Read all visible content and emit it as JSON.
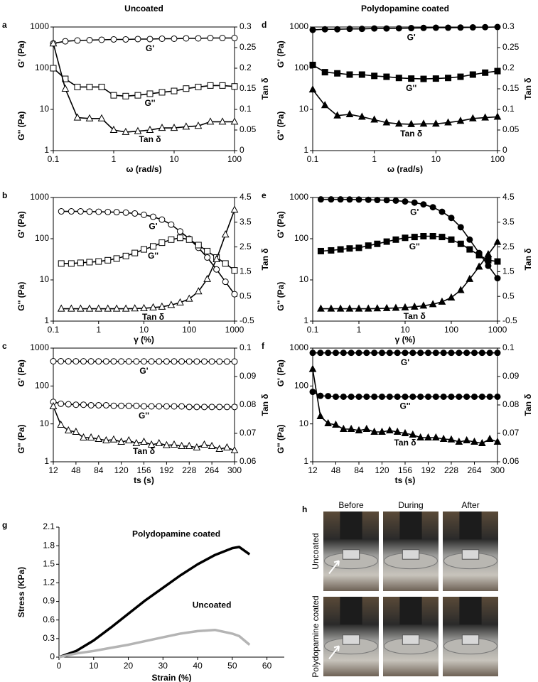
{
  "chart_data": [
    {
      "type": "line",
      "panel": "a",
      "title": "Uncoated",
      "logx": true,
      "logy": true,
      "xlabel": "ω (rad/s)",
      "ylabels": [
        "G' (Pa)",
        "G'' (Pa)"
      ],
      "y2label": "Tan δ",
      "x": [
        0.1,
        0.158,
        0.251,
        0.398,
        0.631,
        1,
        1.58,
        2.51,
        3.98,
        6.31,
        10,
        15.8,
        25.1,
        39.8,
        63.1,
        100
      ],
      "xlim": [
        0.1,
        100
      ],
      "xticks": [
        0.1,
        1,
        10,
        100
      ],
      "ylim": [
        1,
        1000
      ],
      "yticks": [
        1,
        10,
        100,
        1000
      ],
      "y2lim": [
        0,
        0.3
      ],
      "y2ticks": [
        0,
        0.05,
        0.1,
        0.15,
        0.2,
        0.25,
        0.3
      ],
      "series": [
        {
          "name": "G'",
          "color": "#000000",
          "marker": "circle",
          "filled": false,
          "values": [
            400,
            450,
            470,
            480,
            490,
            500,
            500,
            510,
            510,
            520,
            520,
            530,
            530,
            540,
            540,
            540
          ]
        },
        {
          "name": "G''",
          "color": "#000000",
          "marker": "square",
          "filled": false,
          "values": [
            100,
            55,
            35,
            35,
            35,
            22,
            21,
            22,
            24,
            26,
            28,
            32,
            35,
            38,
            38,
            36
          ]
        },
        {
          "name": "Tan δ",
          "color": "#000000",
          "marker": "triangle",
          "filled": false,
          "axis": "y2",
          "values": [
            0.26,
            0.15,
            0.08,
            0.078,
            0.078,
            0.05,
            0.045,
            0.047,
            0.05,
            0.055,
            0.055,
            0.058,
            0.06,
            0.07,
            0.07,
            0.07
          ]
        }
      ]
    },
    {
      "type": "line",
      "panel": "b",
      "logx": true,
      "logy": true,
      "xlabel": "γ (%)",
      "ylabels": [
        "G' (Pa)",
        "G'' (Pa)"
      ],
      "y2label": "Tan δ",
      "x": [
        0.15,
        0.25,
        0.4,
        0.63,
        1,
        1.6,
        2.5,
        4,
        6.3,
        10,
        16,
        25,
        40,
        63,
        100,
        160,
        250,
        400,
        630,
        1000
      ],
      "xlim": [
        0.1,
        1000
      ],
      "xticks": [
        0.1,
        1,
        10,
        100,
        1000
      ],
      "ylim": [
        1,
        1000
      ],
      "yticks": [
        1,
        10,
        100,
        1000
      ],
      "y2lim": [
        -0.5,
        4.5
      ],
      "y2ticks": [
        -0.5,
        0.5,
        1.5,
        2.5,
        3.5,
        4.5
      ],
      "series": [
        {
          "name": "G'",
          "color": "#000000",
          "marker": "circle",
          "filled": false,
          "values": [
            460,
            460,
            460,
            455,
            450,
            445,
            440,
            430,
            410,
            380,
            340,
            290,
            220,
            150,
            100,
            60,
            35,
            18,
            9,
            4.5
          ]
        },
        {
          "name": "G''",
          "color": "#000000",
          "marker": "square",
          "filled": false,
          "values": [
            25,
            25,
            26,
            27,
            28,
            30,
            33,
            38,
            45,
            55,
            65,
            80,
            95,
            105,
            95,
            70,
            50,
            35,
            25,
            17
          ]
        },
        {
          "name": "Tan δ",
          "color": "#000000",
          "marker": "triangle",
          "filled": false,
          "axis": "y2",
          "values": [
            0,
            0,
            0,
            0,
            0,
            0,
            0,
            0,
            0.01,
            0.02,
            0.05,
            0.08,
            0.15,
            0.25,
            0.4,
            0.7,
            1.2,
            2.0,
            3.0,
            4.0
          ]
        }
      ]
    },
    {
      "type": "line",
      "panel": "c",
      "logx": false,
      "logy": true,
      "xlabel": "ts (s)",
      "ylabels": [
        "G' (Pa)",
        "G'' (Pa)"
      ],
      "y2label": "Tan δ",
      "x": [
        12,
        24,
        36,
        48,
        60,
        72,
        84,
        96,
        108,
        120,
        132,
        144,
        156,
        168,
        180,
        192,
        204,
        216,
        228,
        240,
        252,
        264,
        276,
        288,
        300
      ],
      "xlim": [
        12,
        300
      ],
      "xticks": [
        12,
        48,
        84,
        120,
        156,
        192,
        228,
        264,
        300
      ],
      "ylim": [
        1,
        1000
      ],
      "yticks": [
        1,
        10,
        100,
        1000
      ],
      "y2lim": [
        0.06,
        0.1
      ],
      "y2ticks": [
        0.06,
        0.07,
        0.08,
        0.09,
        0.1
      ],
      "series": [
        {
          "name": "G'",
          "color": "#000000",
          "marker": "circle",
          "filled": false,
          "values": [
            450,
            450,
            448,
            448,
            447,
            447,
            446,
            446,
            446,
            445,
            445,
            445,
            445,
            445,
            444,
            444,
            444,
            444,
            443,
            443,
            443,
            443,
            442,
            442,
            442
          ]
        },
        {
          "name": "G''",
          "color": "#000000",
          "marker": "circle",
          "filled": false,
          "values": [
            38,
            34,
            33,
            32,
            32,
            31,
            31,
            31,
            30,
            30,
            30,
            30,
            29,
            29,
            29,
            29,
            29,
            29,
            28,
            28,
            28,
            28,
            28,
            28,
            28
          ]
        },
        {
          "name": "Tan δ",
          "color": "#000000",
          "marker": "triangle",
          "filled": false,
          "axis": "y2",
          "values": [
            0.0795,
            0.073,
            0.071,
            0.0705,
            0.0685,
            0.0685,
            0.068,
            0.0675,
            0.0678,
            0.067,
            0.0675,
            0.0665,
            0.067,
            0.066,
            0.0665,
            0.0658,
            0.066,
            0.0655,
            0.0655,
            0.065,
            0.066,
            0.0655,
            0.0645,
            0.065,
            0.064
          ]
        }
      ]
    },
    {
      "type": "line",
      "panel": "d",
      "title": "Polydopamine coated",
      "logx": true,
      "logy": true,
      "xlabel": "ω (rad/s)",
      "ylabels": [
        "G' (Pa)",
        "G'' (Pa)"
      ],
      "y2label": "Tan δ",
      "x": [
        0.1,
        0.158,
        0.251,
        0.398,
        0.631,
        1,
        1.58,
        2.51,
        3.98,
        6.31,
        10,
        15.8,
        25.1,
        39.8,
        63.1,
        100
      ],
      "xlim": [
        0.1,
        100
      ],
      "xticks": [
        0.1,
        1,
        10,
        100
      ],
      "ylim": [
        1,
        1000
      ],
      "yticks": [
        1,
        10,
        100,
        1000
      ],
      "y2lim": [
        0,
        0.3
      ],
      "y2ticks": [
        0,
        0.05,
        0.1,
        0.15,
        0.2,
        0.25,
        0.3
      ],
      "series": [
        {
          "name": "G'",
          "color": "#000000",
          "marker": "circle",
          "filled": true,
          "values": [
            850,
            880,
            880,
            900,
            900,
            920,
            920,
            930,
            940,
            950,
            960,
            960,
            970,
            980,
            990,
            1000
          ]
        },
        {
          "name": "G''",
          "color": "#000000",
          "marker": "square",
          "filled": true,
          "values": [
            120,
            80,
            75,
            70,
            70,
            65,
            62,
            58,
            56,
            55,
            56,
            58,
            62,
            70,
            78,
            85
          ]
        },
        {
          "name": "Tan δ",
          "color": "#000000",
          "marker": "triangle",
          "filled": true,
          "axis": "y2",
          "values": [
            0.148,
            0.11,
            0.085,
            0.088,
            0.082,
            0.075,
            0.068,
            0.065,
            0.064,
            0.065,
            0.065,
            0.068,
            0.072,
            0.078,
            0.08,
            0.082
          ]
        }
      ]
    },
    {
      "type": "line",
      "panel": "e",
      "logx": true,
      "logy": true,
      "xlabel": "γ (%)",
      "ylabels": [
        "G' (Pa)",
        "G'' (Pa)"
      ],
      "y2label": "Tan δ",
      "x": [
        0.15,
        0.25,
        0.4,
        0.63,
        1,
        1.6,
        2.5,
        4,
        6.3,
        10,
        16,
        25,
        40,
        63,
        100,
        160,
        250,
        400,
        630,
        1000
      ],
      "xlim": [
        0.1,
        1000
      ],
      "xticks": [
        0.1,
        1,
        10,
        100,
        1000
      ],
      "ylim": [
        1,
        1000
      ],
      "yticks": [
        1,
        10,
        100,
        1000
      ],
      "y2lim": [
        -0.5,
        4.5
      ],
      "y2ticks": [
        -0.5,
        0.5,
        1.5,
        2.5,
        3.5,
        4.5
      ],
      "series": [
        {
          "name": "G'",
          "color": "#000000",
          "marker": "circle",
          "filled": true,
          "values": [
            900,
            900,
            900,
            895,
            890,
            880,
            870,
            860,
            840,
            800,
            750,
            680,
            580,
            450,
            320,
            190,
            95,
            45,
            22,
            11
          ]
        },
        {
          "name": "G''",
          "color": "#000000",
          "marker": "square",
          "filled": true,
          "values": [
            50,
            52,
            55,
            58,
            60,
            68,
            75,
            85,
            95,
            105,
            110,
            115,
            115,
            110,
            95,
            75,
            55,
            40,
            30,
            28
          ]
        },
        {
          "name": "Tan δ",
          "color": "#000000",
          "marker": "triangle",
          "filled": true,
          "axis": "y2",
          "values": [
            0,
            0,
            0,
            0,
            0,
            0,
            0.01,
            0.02,
            0.03,
            0.05,
            0.08,
            0.12,
            0.18,
            0.28,
            0.45,
            0.75,
            1.2,
            1.7,
            2.2,
            2.7
          ]
        }
      ]
    },
    {
      "type": "line",
      "panel": "f",
      "logx": false,
      "logy": true,
      "xlabel": "ts (s)",
      "ylabels": [
        "G' (Pa)",
        "G'' (Pa)"
      ],
      "y2label": "Tan δ",
      "x": [
        12,
        24,
        36,
        48,
        60,
        72,
        84,
        96,
        108,
        120,
        132,
        144,
        156,
        168,
        180,
        192,
        204,
        216,
        228,
        240,
        252,
        264,
        276,
        288,
        300
      ],
      "xlim": [
        12,
        300
      ],
      "xticks": [
        12,
        48,
        84,
        120,
        156,
        192,
        228,
        264,
        300
      ],
      "ylim": [
        1,
        1000
      ],
      "yticks": [
        1,
        10,
        100,
        1000
      ],
      "y2lim": [
        0.06,
        0.1
      ],
      "y2ticks": [
        0.06,
        0.07,
        0.08,
        0.09,
        0.1
      ],
      "series": [
        {
          "name": "G'",
          "color": "#000000",
          "marker": "circle",
          "filled": true,
          "values": [
            750,
            750,
            750,
            750,
            750,
            750,
            750,
            750,
            750,
            750,
            750,
            750,
            750,
            750,
            750,
            750,
            750,
            750,
            750,
            750,
            750,
            750,
            750,
            750,
            750
          ]
        },
        {
          "name": "G''",
          "color": "#000000",
          "marker": "circle",
          "filled": true,
          "values": [
            70,
            55,
            54,
            52,
            52,
            52,
            52,
            52,
            52,
            52,
            52,
            52,
            52,
            52,
            52,
            52,
            52,
            52,
            52,
            52,
            52,
            52,
            52,
            52,
            52
          ]
        },
        {
          "name": "Tan δ",
          "color": "#000000",
          "marker": "triangle",
          "filled": true,
          "axis": "y2",
          "values": [
            0.0926,
            0.076,
            0.0735,
            0.073,
            0.0715,
            0.0715,
            0.071,
            0.0715,
            0.0705,
            0.0705,
            0.071,
            0.0705,
            0.07,
            0.0695,
            0.0685,
            0.0685,
            0.0685,
            0.068,
            0.0678,
            0.067,
            0.0675,
            0.067,
            0.0665,
            0.068,
            0.067
          ]
        }
      ]
    },
    {
      "type": "line",
      "panel": "g",
      "logx": false,
      "logy": false,
      "xlabel": "Strain (%)",
      "ylabel": "Stress (KPa)",
      "x": [
        0,
        5,
        10,
        15,
        20,
        25,
        30,
        35,
        40,
        45,
        50,
        52,
        55
      ],
      "xlim": [
        0,
        65
      ],
      "xticks": [
        0,
        10,
        20,
        30,
        40,
        50,
        60
      ],
      "ylim": [
        0,
        2.1
      ],
      "yticks": [
        0,
        0.3,
        0.6,
        0.9,
        1.2,
        1.5,
        1.8,
        2.1
      ],
      "series": [
        {
          "name": "Polydopamine coated",
          "color": "#000000",
          "values": [
            0,
            0.1,
            0.27,
            0.48,
            0.7,
            0.92,
            1.12,
            1.32,
            1.5,
            1.65,
            1.76,
            1.78,
            1.66
          ]
        },
        {
          "name": "Uncoated",
          "color": "#b4b4b4",
          "values": [
            0,
            0.06,
            0.1,
            0.15,
            0.2,
            0.26,
            0.32,
            0.38,
            0.42,
            0.44,
            0.38,
            0.34,
            0.2
          ]
        }
      ]
    }
  ],
  "photos": {
    "panel": "h",
    "columns": [
      "Before",
      "During",
      "After"
    ],
    "rows": [
      "Uncoated",
      "Polydopamine coated"
    ]
  }
}
